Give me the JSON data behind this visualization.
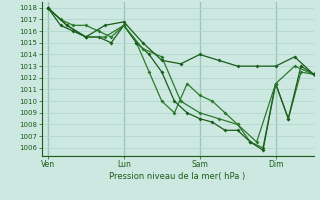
{
  "background_color": "#cce8e0",
  "grid_color": "#b0d8d0",
  "line_color_dark": "#1a5c1a",
  "line_color_mid": "#2d7a2d",
  "xlabel": "Pression niveau de la mer( hPa )",
  "ylim": [
    1005.3,
    1018.5
  ],
  "yticks": [
    1006,
    1007,
    1008,
    1009,
    1010,
    1011,
    1012,
    1013,
    1014,
    1015,
    1016,
    1017,
    1018
  ],
  "xtick_labels": [
    "Ven",
    "Lun",
    "Sam",
    "Dim"
  ],
  "xtick_positions": [
    0,
    24,
    48,
    72
  ],
  "xlim": [
    -2,
    84
  ],
  "vlines": [
    0,
    24,
    48,
    72
  ],
  "series1_x": [
    0,
    6,
    12,
    18,
    24,
    30,
    36,
    42,
    48,
    54,
    60,
    66,
    72,
    78,
    84
  ],
  "series1_y": [
    1018.0,
    1016.5,
    1015.5,
    1016.5,
    1016.8,
    1015.0,
    1013.5,
    1013.2,
    1014.0,
    1013.5,
    1013.0,
    1013.0,
    1013.0,
    1013.8,
    1012.3
  ],
  "series2_x": [
    0,
    6,
    12,
    18,
    24,
    30,
    36,
    42,
    48,
    54,
    60,
    66,
    72,
    78,
    84
  ],
  "series2_y": [
    1018.0,
    1016.5,
    1015.5,
    1015.5,
    1016.5,
    1014.5,
    1013.8,
    1010.0,
    1009.0,
    1008.5,
    1008.0,
    1006.5,
    1011.5,
    1013.0,
    1012.3
  ],
  "series3_x": [
    0,
    4,
    8,
    12,
    16,
    20,
    24,
    28,
    32,
    36,
    40,
    44,
    48,
    52,
    56,
    60,
    64,
    68,
    72,
    76,
    80,
    84
  ],
  "series3_y": [
    1018.0,
    1017.0,
    1016.5,
    1016.5,
    1016.0,
    1015.5,
    1016.5,
    1015.0,
    1012.5,
    1010.0,
    1009.0,
    1011.5,
    1010.5,
    1010.0,
    1009.0,
    1008.0,
    1006.5,
    1006.0,
    1011.5,
    1008.5,
    1012.5,
    1012.3
  ],
  "series4_x": [
    0,
    4,
    8,
    12,
    16,
    20,
    24,
    28,
    32,
    36,
    40,
    44,
    48,
    52,
    56,
    60,
    64,
    68,
    72,
    76,
    80,
    84
  ],
  "series4_y": [
    1018.0,
    1016.5,
    1016.0,
    1015.5,
    1015.5,
    1015.0,
    1016.5,
    1015.0,
    1014.0,
    1012.5,
    1010.0,
    1009.0,
    1008.5,
    1008.2,
    1007.5,
    1007.5,
    1006.5,
    1005.8,
    1011.5,
    1008.5,
    1013.0,
    1012.3
  ]
}
